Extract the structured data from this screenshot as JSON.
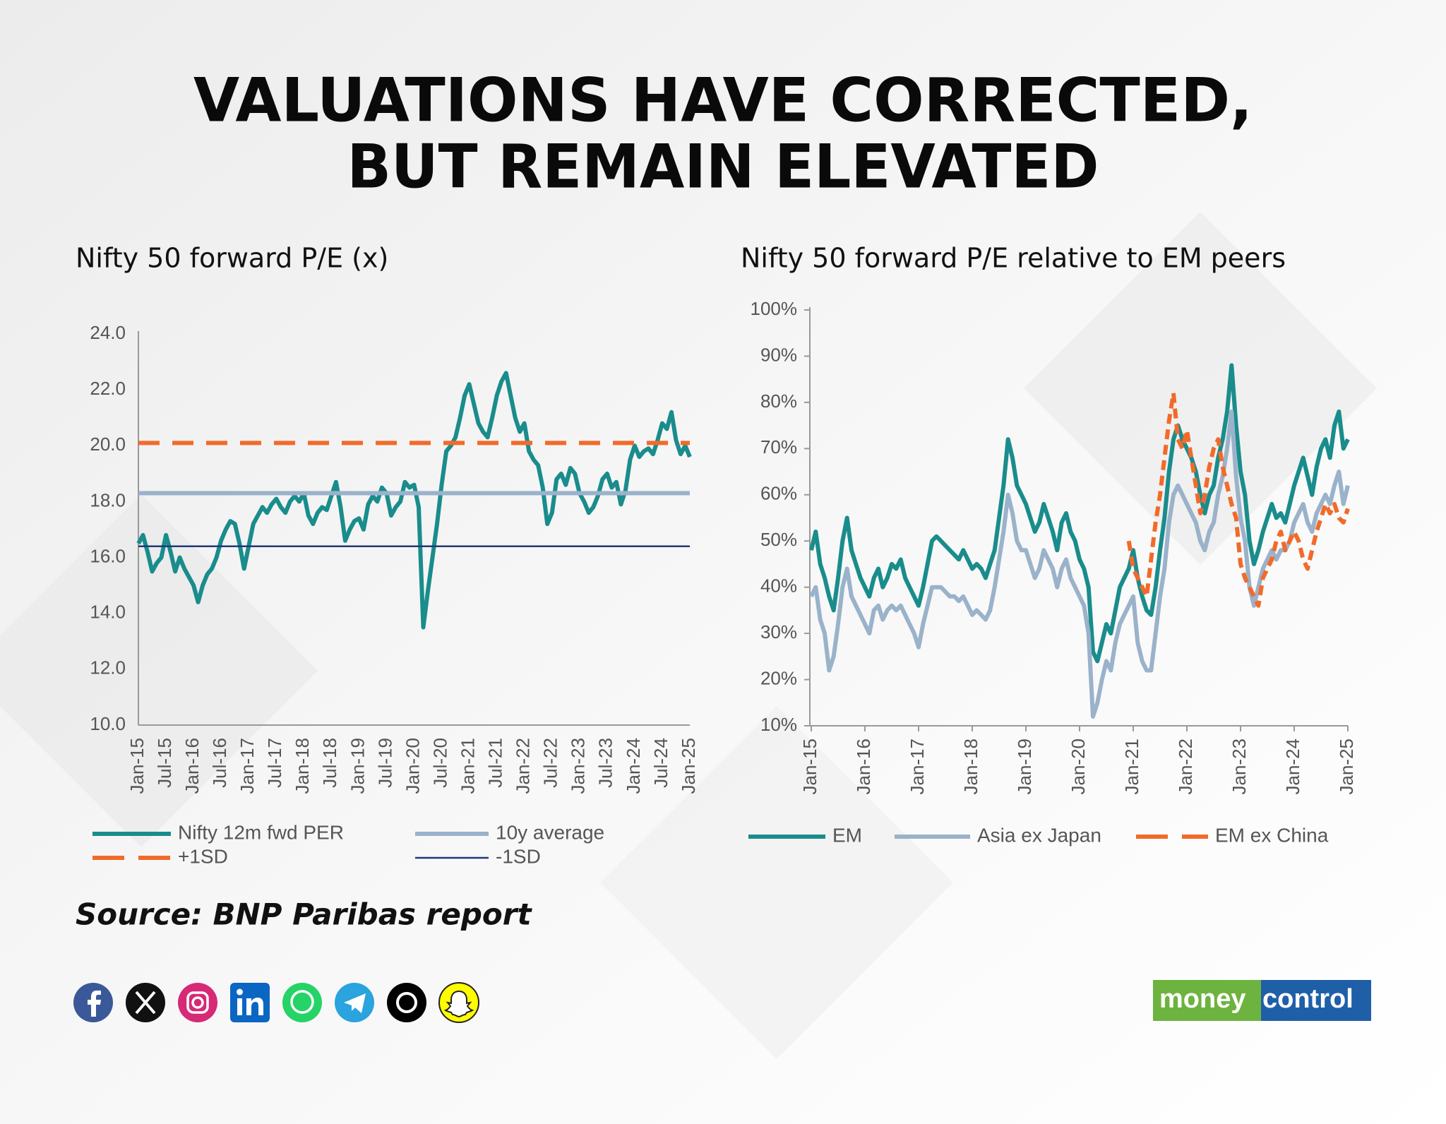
{
  "header": {
    "title": [
      "VALUATIONS HAVE CORRECTED,",
      "BUT REMAIN ELEVATED"
    ]
  },
  "chart_data": [
    {
      "type": "line",
      "title": "Nifty 50 forward P/E (x)",
      "x": [
        "Jan-15",
        "Feb-15",
        "Mar-15",
        "Apr-15",
        "May-15",
        "Jun-15",
        "Jul-15",
        "Aug-15",
        "Sep-15",
        "Oct-15",
        "Nov-15",
        "Dec-15",
        "Jan-16",
        "Feb-16",
        "Mar-16",
        "Apr-16",
        "May-16",
        "Jun-16",
        "Jul-16",
        "Aug-16",
        "Sep-16",
        "Oct-16",
        "Nov-16",
        "Dec-16",
        "Jan-17",
        "Feb-17",
        "Mar-17",
        "Apr-17",
        "May-17",
        "Jun-17",
        "Jul-17",
        "Aug-17",
        "Sep-17",
        "Oct-17",
        "Nov-17",
        "Dec-17",
        "Jan-18",
        "Feb-18",
        "Mar-18",
        "Apr-18",
        "May-18",
        "Jun-18",
        "Jul-18",
        "Aug-18",
        "Sep-18",
        "Oct-18",
        "Nov-18",
        "Dec-18",
        "Jan-19",
        "Feb-19",
        "Mar-19",
        "Apr-19",
        "May-19",
        "Jun-19",
        "Jul-19",
        "Aug-19",
        "Sep-19",
        "Oct-19",
        "Nov-19",
        "Dec-19",
        "Jan-20",
        "Feb-20",
        "Mar-20",
        "Apr-20",
        "May-20",
        "Jun-20",
        "Jul-20",
        "Aug-20",
        "Sep-20",
        "Oct-20",
        "Nov-20",
        "Dec-20",
        "Jan-21",
        "Feb-21",
        "Mar-21",
        "Apr-21",
        "May-21",
        "Jun-21",
        "Jul-21",
        "Aug-21",
        "Sep-21",
        "Oct-21",
        "Nov-21",
        "Dec-21",
        "Jan-22",
        "Feb-22",
        "Mar-22",
        "Apr-22",
        "May-22",
        "Jun-22",
        "Jul-22",
        "Aug-22",
        "Sep-22",
        "Oct-22",
        "Nov-22",
        "Dec-22",
        "Jan-23",
        "Feb-23",
        "Mar-23",
        "Apr-23",
        "May-23",
        "Jun-23",
        "Jul-23",
        "Aug-23",
        "Sep-23",
        "Oct-23",
        "Nov-23",
        "Dec-23",
        "Jan-24",
        "Feb-24",
        "Mar-24",
        "Apr-24",
        "May-24",
        "Jun-24",
        "Jul-24",
        "Aug-24",
        "Sep-24",
        "Oct-24",
        "Nov-24",
        "Dec-24",
        "Jan-25"
      ],
      "xticks": [
        "Jan-15",
        "Jul-15",
        "Jan-16",
        "Jul-16",
        "Jan-17",
        "Jul-17",
        "Jan-18",
        "Jul-18",
        "Jan-19",
        "Jul-19",
        "Jan-20",
        "Jul-20",
        "Jan-21",
        "Jul-21",
        "Jan-22",
        "Jul-22",
        "Jan-23",
        "Jul-23",
        "Jan-24",
        "Jul-24",
        "Jan-25"
      ],
      "ylim": [
        10,
        24
      ],
      "yticks": [
        {
          "value": 10,
          "label": "10.0"
        },
        {
          "value": 12,
          "label": "12.0"
        },
        {
          "value": 14,
          "label": "14.0"
        },
        {
          "value": 16,
          "label": "16.0"
        },
        {
          "value": 18,
          "label": "18.0"
        },
        {
          "value": 20,
          "label": "20.0"
        },
        {
          "value": 22,
          "label": "22.0"
        },
        {
          "value": 24,
          "label": "24.0"
        }
      ],
      "series": [
        {
          "name": "Nifty 12m fwd PER",
          "color": "#1a8c8c",
          "values": [
            16.5,
            16.8,
            16.2,
            15.5,
            15.8,
            16.0,
            16.8,
            16.2,
            15.5,
            16.0,
            15.6,
            15.3,
            15.0,
            14.4,
            15.0,
            15.4,
            15.6,
            16.0,
            16.6,
            17.0,
            17.3,
            17.2,
            16.5,
            15.6,
            16.4,
            17.2,
            17.5,
            17.8,
            17.6,
            17.9,
            18.1,
            17.8,
            17.6,
            18.0,
            18.2,
            18.0,
            18.3,
            17.5,
            17.2,
            17.6,
            17.8,
            17.7,
            18.2,
            18.7,
            17.8,
            16.6,
            17.0,
            17.3,
            17.4,
            17.0,
            17.9,
            18.2,
            18.0,
            18.5,
            18.3,
            17.5,
            17.8,
            18.0,
            18.7,
            18.5,
            18.6,
            17.8,
            13.5,
            14.8,
            16.0,
            17.2,
            18.6,
            19.8,
            20.0,
            20.3,
            21.0,
            21.8,
            22.2,
            21.5,
            20.8,
            20.5,
            20.3,
            21.0,
            21.8,
            22.3,
            22.6,
            21.8,
            21.0,
            20.5,
            20.8,
            19.8,
            19.5,
            19.3,
            18.5,
            17.2,
            17.6,
            18.8,
            19.0,
            18.6,
            19.2,
            19.0,
            18.3,
            18.0,
            17.6,
            17.8,
            18.2,
            18.8,
            19.0,
            18.5,
            18.7,
            17.9,
            18.4,
            19.5,
            20.0,
            19.6,
            19.8,
            19.9,
            19.7,
            20.2,
            20.8,
            20.6,
            21.2,
            20.2,
            19.7,
            20.0,
            19.6
          ]
        },
        {
          "name": "10y average",
          "color": "#9ab2ca",
          "value": 18.3
        },
        {
          "name": "+1SD",
          "color": "#f26a2a",
          "value": 20.1,
          "dash": true
        },
        {
          "name": "-1SD",
          "color": "#1f3a78",
          "value": 16.4
        }
      ]
    },
    {
      "type": "line",
      "title": "Nifty 50 forward P/E relative to EM peers",
      "x": [
        "Jan-15",
        "Feb-15",
        "Mar-15",
        "Apr-15",
        "May-15",
        "Jun-15",
        "Jul-15",
        "Aug-15",
        "Sep-15",
        "Oct-15",
        "Nov-15",
        "Dec-15",
        "Jan-16",
        "Feb-16",
        "Mar-16",
        "Apr-16",
        "May-16",
        "Jun-16",
        "Jul-16",
        "Aug-16",
        "Sep-16",
        "Oct-16",
        "Nov-16",
        "Dec-16",
        "Jan-17",
        "Feb-17",
        "Mar-17",
        "Apr-17",
        "May-17",
        "Jun-17",
        "Jul-17",
        "Aug-17",
        "Sep-17",
        "Oct-17",
        "Nov-17",
        "Dec-17",
        "Jan-18",
        "Feb-18",
        "Mar-18",
        "Apr-18",
        "May-18",
        "Jun-18",
        "Jul-18",
        "Aug-18",
        "Sep-18",
        "Oct-18",
        "Nov-18",
        "Dec-18",
        "Jan-19",
        "Feb-19",
        "Mar-19",
        "Apr-19",
        "May-19",
        "Jun-19",
        "Jul-19",
        "Aug-19",
        "Sep-19",
        "Oct-19",
        "Nov-19",
        "Dec-19",
        "Jan-20",
        "Feb-20",
        "Mar-20",
        "Apr-20",
        "May-20",
        "Jun-20",
        "Jul-20",
        "Aug-20",
        "Sep-20",
        "Oct-20",
        "Nov-20",
        "Dec-20",
        "Jan-21",
        "Feb-21",
        "Mar-21",
        "Apr-21",
        "May-21",
        "Jun-21",
        "Jul-21",
        "Aug-21",
        "Sep-21",
        "Oct-21",
        "Nov-21",
        "Dec-21",
        "Jan-22",
        "Feb-22",
        "Mar-22",
        "Apr-22",
        "May-22",
        "Jun-22",
        "Jul-22",
        "Aug-22",
        "Sep-22",
        "Oct-22",
        "Nov-22",
        "Dec-22",
        "Jan-23",
        "Feb-23",
        "Mar-23",
        "Apr-23",
        "May-23",
        "Jun-23",
        "Jul-23",
        "Aug-23",
        "Sep-23",
        "Oct-23",
        "Nov-23",
        "Dec-23",
        "Jan-24",
        "Feb-24",
        "Mar-24",
        "Apr-24",
        "May-24",
        "Jun-24",
        "Jul-24",
        "Aug-24",
        "Sep-24",
        "Oct-24",
        "Nov-24",
        "Dec-24",
        "Jan-25"
      ],
      "xticks": [
        "Jan-15",
        "Jan-16",
        "Jan-17",
        "Jan-18",
        "Jan-19",
        "Jan-20",
        "Jan-21",
        "Jan-22",
        "Jan-23",
        "Jan-24",
        "Jan-25"
      ],
      "ylim": [
        10,
        100
      ],
      "yticks": [
        {
          "value": 10,
          "label": "10%"
        },
        {
          "value": 20,
          "label": "20%"
        },
        {
          "value": 30,
          "label": "30%"
        },
        {
          "value": 40,
          "label": "40%"
        },
        {
          "value": 50,
          "label": "50%"
        },
        {
          "value": 60,
          "label": "60%"
        },
        {
          "value": 70,
          "label": "70%"
        },
        {
          "value": 80,
          "label": "80%"
        },
        {
          "value": 90,
          "label": "90%"
        },
        {
          "value": 100,
          "label": "100%"
        }
      ],
      "series": [
        {
          "name": "EM",
          "color": "#1a8c8c",
          "values": [
            48,
            52,
            45,
            42,
            38,
            35,
            42,
            50,
            55,
            48,
            45,
            42,
            40,
            38,
            42,
            44,
            40,
            42,
            45,
            44,
            46,
            42,
            40,
            38,
            36,
            40,
            45,
            50,
            51,
            50,
            49,
            48,
            47,
            46,
            48,
            46,
            44,
            45,
            44,
            42,
            45,
            48,
            55,
            62,
            72,
            68,
            62,
            60,
            58,
            55,
            52,
            54,
            58,
            55,
            52,
            48,
            54,
            56,
            52,
            50,
            46,
            44,
            40,
            26,
            24,
            28,
            32,
            30,
            35,
            40,
            42,
            44,
            48,
            42,
            38,
            35,
            34,
            40,
            48,
            55,
            65,
            72,
            75,
            72,
            70,
            68,
            65,
            60,
            56,
            60,
            62,
            68,
            72,
            78,
            88,
            75,
            65,
            60,
            50,
            45,
            48,
            52,
            55,
            58,
            55,
            56,
            54,
            58,
            62,
            65,
            68,
            64,
            60,
            66,
            70,
            72,
            68,
            75,
            78,
            70,
            72
          ]
        },
        {
          "name": "Asia ex Japan",
          "color": "#9ab2ca",
          "values": [
            38,
            40,
            33,
            30,
            22,
            25,
            32,
            40,
            44,
            38,
            36,
            34,
            32,
            30,
            35,
            36,
            33,
            35,
            36,
            35,
            36,
            34,
            32,
            30,
            27,
            32,
            36,
            40,
            40,
            40,
            39,
            38,
            38,
            37,
            38,
            36,
            34,
            35,
            34,
            33,
            35,
            40,
            46,
            52,
            60,
            56,
            50,
            48,
            48,
            45,
            42,
            44,
            48,
            46,
            44,
            40,
            44,
            46,
            42,
            40,
            38,
            36,
            30,
            12,
            15,
            20,
            24,
            22,
            28,
            32,
            34,
            36,
            38,
            28,
            24,
            22,
            22,
            30,
            38,
            44,
            54,
            60,
            62,
            60,
            58,
            56,
            54,
            50,
            48,
            52,
            54,
            60,
            64,
            70,
            78,
            64,
            55,
            50,
            40,
            36,
            40,
            44,
            46,
            48,
            46,
            48,
            48,
            50,
            54,
            56,
            58,
            54,
            52,
            56,
            58,
            60,
            58,
            62,
            65,
            58,
            62
          ]
        },
        {
          "name": "EM ex China",
          "color": "#f26a2a",
          "dash": true,
          "values": [
            null,
            null,
            null,
            null,
            null,
            null,
            null,
            null,
            null,
            null,
            null,
            null,
            null,
            null,
            null,
            null,
            null,
            null,
            null,
            null,
            null,
            null,
            null,
            null,
            null,
            null,
            null,
            null,
            null,
            null,
            null,
            null,
            null,
            null,
            null,
            null,
            null,
            null,
            null,
            null,
            null,
            null,
            null,
            null,
            null,
            null,
            null,
            null,
            null,
            null,
            null,
            null,
            null,
            null,
            null,
            null,
            null,
            null,
            null,
            null,
            null,
            null,
            null,
            null,
            null,
            null,
            null,
            null,
            null,
            null,
            null,
            50,
            44,
            42,
            40,
            38,
            46,
            54,
            60,
            68,
            76,
            82,
            72,
            70,
            74,
            68,
            62,
            56,
            60,
            66,
            70,
            72,
            66,
            62,
            58,
            55,
            45,
            42,
            40,
            38,
            36,
            42,
            44,
            46,
            50,
            52,
            48,
            50,
            52,
            50,
            46,
            44,
            48,
            52,
            55,
            58,
            56,
            58,
            55,
            54,
            57
          ]
        }
      ]
    }
  ],
  "source": "Source: BNP Paribas report",
  "logo": {
    "left": "money",
    "right": "control"
  }
}
